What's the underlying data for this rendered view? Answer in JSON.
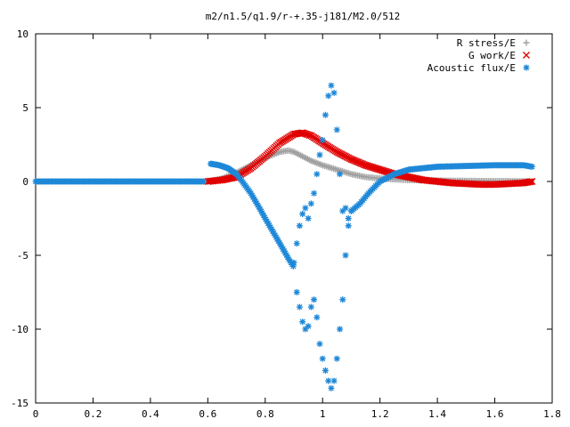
{
  "chart_data": {
    "type": "scatter",
    "title": "m2/n1.5/q1.9/r-+.35-j181/M2.0/512",
    "xlabel": "",
    "ylabel": "",
    "xlim": [
      0,
      1.8
    ],
    "ylim": [
      -15,
      10
    ],
    "xticks": [
      0,
      0.2,
      0.4,
      0.6,
      0.8,
      1,
      1.2,
      1.4,
      1.6,
      1.8
    ],
    "yticks": [
      -15,
      -10,
      -5,
      0,
      5,
      10
    ],
    "xtick_labels": [
      "0",
      "0.2",
      "0.4",
      "0.6",
      "0.8",
      "1",
      "1.2",
      "1.4",
      "1.6",
      "1.8"
    ],
    "ytick_labels": [
      "-15",
      "-10",
      "-5",
      "0",
      "5",
      "10"
    ],
    "grid": false,
    "legend_position": "top-right",
    "series": [
      {
        "name": "R stress/E",
        "marker": "plus",
        "color": "#a0a0a0",
        "x": [
          0.6,
          0.65,
          0.7,
          0.75,
          0.8,
          0.85,
          0.88,
          0.9,
          0.93,
          0.96,
          1.0,
          1.05,
          1.1,
          1.15,
          1.2,
          1.25,
          1.3,
          1.35,
          1.4,
          1.45,
          1.5,
          1.55,
          1.6,
          1.65,
          1.7,
          1.73
        ],
        "y": [
          0.0,
          0.2,
          0.6,
          1.1,
          1.6,
          2.0,
          2.1,
          2.0,
          1.7,
          1.4,
          1.1,
          0.8,
          0.5,
          0.3,
          0.2,
          0.15,
          0.1,
          0.08,
          0.06,
          0.05,
          0.04,
          0.03,
          0.02,
          0.02,
          0.01,
          0.0
        ]
      },
      {
        "name": "G work/E",
        "marker": "cross",
        "color": "#e00000",
        "x": [
          0.6,
          0.65,
          0.7,
          0.75,
          0.8,
          0.85,
          0.9,
          0.93,
          0.96,
          1.0,
          1.05,
          1.1,
          1.15,
          1.2,
          1.25,
          1.3,
          1.35,
          1.4,
          1.45,
          1.5,
          1.55,
          1.6,
          1.65,
          1.7,
          1.73
        ],
        "y": [
          0.0,
          0.1,
          0.3,
          0.9,
          1.7,
          2.6,
          3.2,
          3.3,
          3.1,
          2.6,
          2.0,
          1.5,
          1.1,
          0.8,
          0.5,
          0.3,
          0.1,
          0.0,
          -0.1,
          -0.15,
          -0.2,
          -0.2,
          -0.15,
          -0.1,
          0.0
        ]
      },
      {
        "name": "Acoustic flux/E",
        "marker": "star",
        "color": "#1e88d8",
        "x": [
          0.0,
          0.1,
          0.2,
          0.3,
          0.4,
          0.5,
          0.59,
          0.61,
          0.64,
          0.67,
          0.7,
          0.72,
          0.75,
          0.78,
          0.8,
          0.83,
          0.86,
          0.88,
          0.9,
          0.9,
          0.91,
          0.92,
          0.93,
          0.94,
          0.95,
          0.96,
          0.97,
          0.98,
          0.99,
          1.0,
          1.01,
          1.02,
          1.03,
          1.04,
          1.05,
          1.06,
          1.07,
          1.08,
          1.09,
          1.1,
          1.13,
          1.16,
          1.2,
          1.25,
          1.3,
          1.35,
          1.4,
          1.5,
          1.6,
          1.7,
          1.73,
          0.91,
          0.92,
          0.93,
          0.94,
          0.95,
          0.96,
          0.97,
          0.98,
          0.99,
          1.0,
          1.01,
          1.02,
          1.03,
          1.04,
          1.05,
          1.06,
          1.07,
          1.08,
          1.09
        ],
        "y": [
          0.0,
          0.0,
          0.0,
          0.0,
          0.0,
          0.0,
          0.0,
          1.2,
          1.1,
          0.9,
          0.5,
          0.0,
          -0.8,
          -1.8,
          -2.5,
          -3.5,
          -4.5,
          -5.2,
          -5.8,
          -5.5,
          -4.2,
          -3.0,
          -2.2,
          -1.8,
          -2.5,
          -1.5,
          -0.8,
          0.5,
          1.8,
          2.8,
          4.5,
          5.8,
          6.5,
          6.0,
          3.5,
          0.5,
          -2.0,
          -1.8,
          -2.5,
          -2.0,
          -1.5,
          -0.8,
          0.0,
          0.5,
          0.8,
          0.9,
          1.0,
          1.05,
          1.1,
          1.1,
          1.0,
          -7.5,
          -8.5,
          -9.5,
          -10.0,
          -9.8,
          -8.5,
          -8.0,
          -9.2,
          -11.0,
          -12.0,
          -12.8,
          -13.5,
          -14.0,
          -13.5,
          -12.0,
          -10.0,
          -8.0,
          -5.0,
          -3.0
        ]
      }
    ]
  }
}
